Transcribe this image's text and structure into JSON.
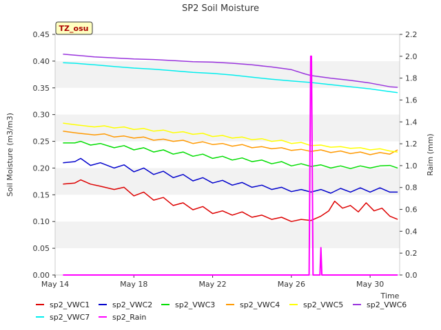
{
  "chart_data": {
    "type": "line",
    "title": "SP2 Soil Moisture",
    "xlabel": "Time",
    "ylabel": "Soil Moisture (m3/m3)",
    "y2label": "Raim (mm)",
    "badge": "TZ_osu",
    "xlim": [
      14,
      31.5
    ],
    "ylim": [
      0,
      0.45
    ],
    "y2lim": [
      0,
      2.2
    ],
    "xticks": [
      14,
      18,
      22,
      26,
      30
    ],
    "xtick_labels": [
      "May 14",
      "May 18",
      "May 22",
      "May 26",
      "May 30"
    ],
    "yticks": [
      0,
      0.05,
      0.1,
      0.15,
      0.2,
      0.25,
      0.3,
      0.35,
      0.4,
      0.45
    ],
    "ytick_labels": [
      "0.00",
      "0.05",
      "0.10",
      "0.15",
      "0.20",
      "0.25",
      "0.30",
      "0.35",
      "0.40",
      "0.45"
    ],
    "y2ticks": [
      0,
      0.2,
      0.4,
      0.6,
      0.8,
      1.0,
      1.2,
      1.4,
      1.6,
      1.8,
      2.0,
      2.2
    ],
    "y2tick_labels": [
      "0.0",
      "0.2",
      "0.4",
      "0.6",
      "0.8",
      "1.0",
      "1.2",
      "1.4",
      "1.6",
      "1.8",
      "2.0",
      "2.2"
    ],
    "grid": "horizontal bands",
    "legend_position": "bottom",
    "series": [
      {
        "name": "sp2_VWC1",
        "color": "#dd0000",
        "axis": "left",
        "x": [
          14.4,
          15.0,
          15.3,
          15.8,
          16.3,
          17.0,
          17.5,
          18.0,
          18.5,
          19.0,
          19.5,
          20.0,
          20.5,
          21.0,
          21.5,
          22.0,
          22.5,
          23.0,
          23.5,
          24.0,
          24.5,
          25.0,
          25.5,
          26.0,
          26.5,
          27.0,
          27.5,
          27.9,
          28.2,
          28.6,
          29.0,
          29.4,
          29.8,
          30.2,
          30.6,
          31.0,
          31.4
        ],
        "y": [
          0.17,
          0.172,
          0.178,
          0.17,
          0.166,
          0.16,
          0.164,
          0.148,
          0.155,
          0.14,
          0.145,
          0.13,
          0.135,
          0.122,
          0.128,
          0.115,
          0.12,
          0.112,
          0.118,
          0.108,
          0.112,
          0.104,
          0.108,
          0.1,
          0.104,
          0.102,
          0.11,
          0.12,
          0.138,
          0.125,
          0.13,
          0.118,
          0.135,
          0.12,
          0.125,
          0.11,
          0.104
        ]
      },
      {
        "name": "sp2_VWC2",
        "color": "#0000cc",
        "axis": "left",
        "x": [
          14.4,
          15.0,
          15.3,
          15.8,
          16.3,
          17.0,
          17.5,
          18.0,
          18.5,
          19.0,
          19.5,
          20.0,
          20.5,
          21.0,
          21.5,
          22.0,
          22.5,
          23.0,
          23.5,
          24.0,
          24.5,
          25.0,
          25.5,
          26.0,
          26.5,
          27.0,
          27.5,
          28.0,
          28.5,
          29.0,
          29.5,
          30.0,
          30.5,
          31.0,
          31.4
        ],
        "y": [
          0.21,
          0.212,
          0.218,
          0.205,
          0.21,
          0.2,
          0.206,
          0.193,
          0.2,
          0.188,
          0.194,
          0.182,
          0.188,
          0.176,
          0.182,
          0.172,
          0.177,
          0.168,
          0.173,
          0.164,
          0.168,
          0.16,
          0.164,
          0.156,
          0.16,
          0.155,
          0.16,
          0.153,
          0.162,
          0.155,
          0.163,
          0.155,
          0.163,
          0.155,
          0.155
        ]
      },
      {
        "name": "sp2_VWC3",
        "color": "#00dd00",
        "axis": "left",
        "x": [
          14.4,
          15.0,
          15.3,
          15.8,
          16.3,
          17.0,
          17.5,
          18.0,
          18.5,
          19.0,
          19.5,
          20.0,
          20.5,
          21.0,
          21.5,
          22.0,
          22.5,
          23.0,
          23.5,
          24.0,
          24.5,
          25.0,
          25.5,
          26.0,
          26.5,
          27.0,
          27.5,
          28.0,
          28.5,
          29.0,
          29.5,
          30.0,
          30.5,
          31.0,
          31.4
        ],
        "y": [
          0.247,
          0.247,
          0.25,
          0.243,
          0.246,
          0.238,
          0.242,
          0.234,
          0.238,
          0.23,
          0.234,
          0.226,
          0.23,
          0.222,
          0.226,
          0.218,
          0.222,
          0.215,
          0.219,
          0.212,
          0.215,
          0.208,
          0.212,
          0.204,
          0.208,
          0.203,
          0.206,
          0.2,
          0.204,
          0.199,
          0.204,
          0.2,
          0.204,
          0.205,
          0.2
        ]
      },
      {
        "name": "sp2_VWC4",
        "color": "#ff9900",
        "axis": "left",
        "x": [
          14.4,
          15.0,
          15.5,
          16.0,
          16.5,
          17.0,
          17.5,
          18.0,
          18.5,
          19.0,
          19.5,
          20.0,
          20.5,
          21.0,
          21.5,
          22.0,
          22.5,
          23.0,
          23.5,
          24.0,
          24.5,
          25.0,
          25.5,
          26.0,
          26.5,
          27.0,
          27.5,
          28.0,
          28.5,
          29.0,
          29.5,
          30.0,
          30.5,
          31.0,
          31.4
        ],
        "y": [
          0.269,
          0.266,
          0.264,
          0.262,
          0.264,
          0.258,
          0.26,
          0.256,
          0.258,
          0.252,
          0.254,
          0.25,
          0.252,
          0.246,
          0.249,
          0.244,
          0.246,
          0.241,
          0.244,
          0.238,
          0.24,
          0.236,
          0.238,
          0.233,
          0.235,
          0.231,
          0.234,
          0.229,
          0.232,
          0.227,
          0.23,
          0.225,
          0.229,
          0.226,
          0.234
        ]
      },
      {
        "name": "sp2_VWC5",
        "color": "#ffff00",
        "axis": "left",
        "x": [
          14.4,
          15.0,
          15.5,
          16.0,
          16.5,
          17.0,
          17.5,
          18.0,
          18.5,
          19.0,
          19.5,
          20.0,
          20.5,
          21.0,
          21.5,
          22.0,
          22.5,
          23.0,
          23.5,
          24.0,
          24.5,
          25.0,
          25.5,
          26.0,
          26.5,
          27.0,
          27.5,
          28.0,
          28.5,
          29.0,
          29.5,
          30.0,
          30.5,
          31.0,
          31.4
        ],
        "y": [
          0.284,
          0.281,
          0.279,
          0.277,
          0.279,
          0.275,
          0.277,
          0.272,
          0.274,
          0.269,
          0.271,
          0.266,
          0.268,
          0.263,
          0.265,
          0.259,
          0.261,
          0.256,
          0.258,
          0.253,
          0.255,
          0.25,
          0.252,
          0.246,
          0.248,
          0.242,
          0.243,
          0.239,
          0.24,
          0.237,
          0.238,
          0.234,
          0.236,
          0.232,
          0.23
        ]
      },
      {
        "name": "sp2_VWC6",
        "color": "#9933dd",
        "axis": "left",
        "x": [
          14.4,
          15.0,
          16.0,
          17.0,
          18.0,
          19.0,
          20.0,
          21.0,
          22.0,
          23.0,
          24.0,
          25.0,
          26.0,
          26.7,
          27.0,
          28.0,
          29.0,
          30.0,
          31.0,
          31.4
        ],
        "y": [
          0.413,
          0.411,
          0.408,
          0.406,
          0.404,
          0.403,
          0.401,
          0.399,
          0.398,
          0.396,
          0.393,
          0.389,
          0.384,
          0.376,
          0.373,
          0.368,
          0.364,
          0.359,
          0.352,
          0.351
        ]
      },
      {
        "name": "sp2_VWC7",
        "color": "#00eeee",
        "axis": "left",
        "x": [
          14.4,
          15.0,
          16.0,
          17.0,
          18.0,
          19.0,
          20.0,
          21.0,
          22.0,
          23.0,
          24.0,
          25.0,
          26.0,
          27.0,
          28.0,
          29.0,
          30.0,
          31.0,
          31.4
        ],
        "y": [
          0.397,
          0.396,
          0.393,
          0.39,
          0.387,
          0.385,
          0.382,
          0.379,
          0.377,
          0.374,
          0.37,
          0.366,
          0.363,
          0.36,
          0.356,
          0.352,
          0.348,
          0.343,
          0.341
        ]
      },
      {
        "name": "sp2_Rain",
        "color": "#ff00ff",
        "axis": "right",
        "x": [
          14.4,
          26.9,
          26.98,
          27.02,
          27.1,
          27.45,
          27.5,
          27.55,
          31.4
        ],
        "y": [
          0,
          0,
          2.0,
          2.0,
          0,
          0,
          0.25,
          0,
          0
        ]
      }
    ]
  }
}
